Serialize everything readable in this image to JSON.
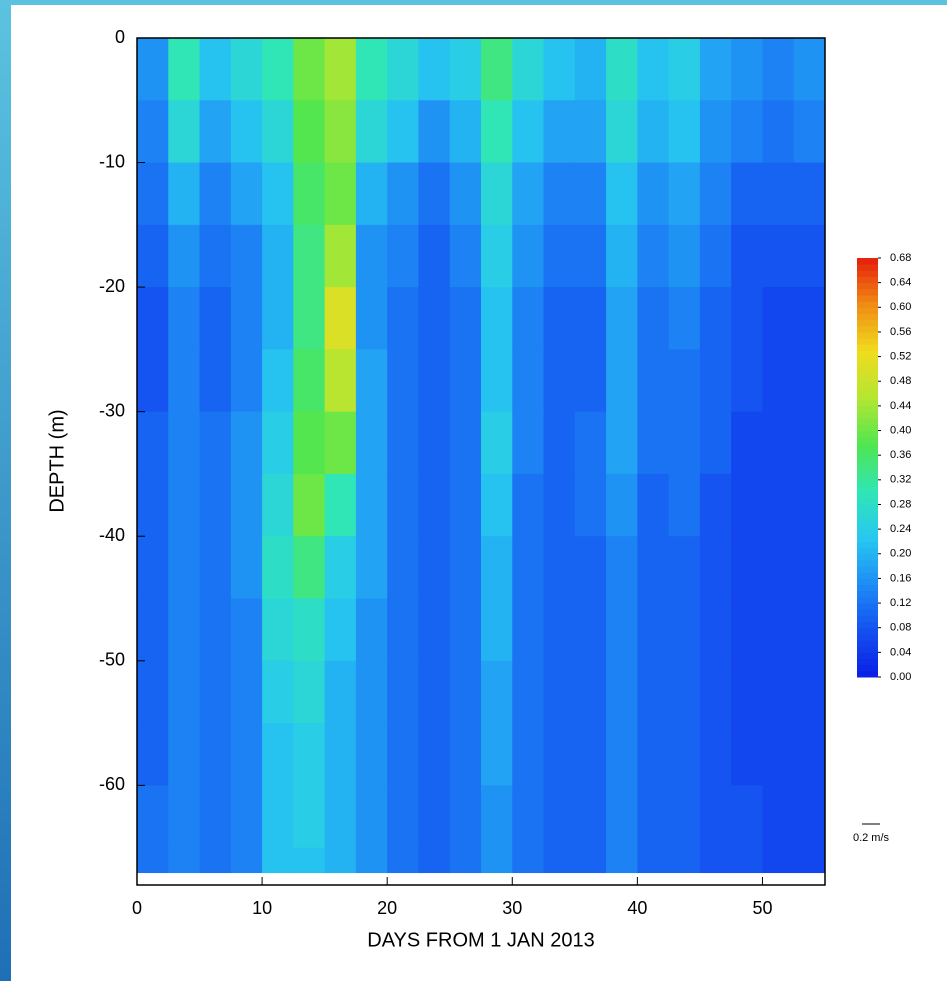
{
  "chart_data": {
    "type": "heatmap",
    "x_label": "DAYS FROM 1 JAN 2013",
    "y_label": "DEPTH (m)",
    "xlim": [
      0,
      55
    ],
    "ylim": [
      -68,
      0
    ],
    "xticks": [
      0,
      10,
      20,
      30,
      40,
      50
    ],
    "yticks": [
      0,
      -10,
      -20,
      -30,
      -40,
      -50,
      -60
    ],
    "x_edges": [
      0,
      2.5,
      5,
      7.5,
      10,
      12.5,
      15,
      17.5,
      20,
      22.5,
      25,
      27.5,
      30,
      32.5,
      35,
      37.5,
      40,
      42.5,
      45,
      47.5,
      50,
      52.5,
      55
    ],
    "y_edges": [
      0,
      -5,
      -10,
      -15,
      -20,
      -25,
      -30,
      -35,
      -40,
      -45,
      -50,
      -55,
      -60,
      -65,
      -67
    ],
    "values": [
      [
        0.16,
        0.3,
        0.22,
        0.26,
        0.3,
        0.4,
        0.44,
        0.3,
        0.26,
        0.22,
        0.24,
        0.34,
        0.26,
        0.22,
        0.2,
        0.28,
        0.22,
        0.24,
        0.18,
        0.16,
        0.14,
        0.16
      ],
      [
        0.14,
        0.26,
        0.18,
        0.22,
        0.26,
        0.38,
        0.42,
        0.26,
        0.22,
        0.16,
        0.2,
        0.3,
        0.22,
        0.18,
        0.18,
        0.26,
        0.2,
        0.22,
        0.16,
        0.14,
        0.12,
        0.14
      ],
      [
        0.12,
        0.2,
        0.14,
        0.18,
        0.22,
        0.36,
        0.4,
        0.2,
        0.16,
        0.12,
        0.16,
        0.26,
        0.18,
        0.14,
        0.14,
        0.22,
        0.16,
        0.18,
        0.14,
        0.1,
        0.1,
        0.1
      ],
      [
        0.1,
        0.16,
        0.12,
        0.14,
        0.2,
        0.34,
        0.44,
        0.16,
        0.14,
        0.1,
        0.14,
        0.24,
        0.16,
        0.12,
        0.12,
        0.2,
        0.14,
        0.16,
        0.12,
        0.08,
        0.08,
        0.08
      ],
      [
        0.08,
        0.14,
        0.1,
        0.14,
        0.2,
        0.34,
        0.5,
        0.16,
        0.12,
        0.1,
        0.12,
        0.22,
        0.14,
        0.1,
        0.1,
        0.18,
        0.12,
        0.14,
        0.1,
        0.08,
        0.06,
        0.06
      ],
      [
        0.08,
        0.14,
        0.1,
        0.14,
        0.22,
        0.36,
        0.46,
        0.18,
        0.12,
        0.1,
        0.12,
        0.22,
        0.14,
        0.1,
        0.1,
        0.18,
        0.12,
        0.12,
        0.1,
        0.08,
        0.06,
        0.06
      ],
      [
        0.1,
        0.14,
        0.12,
        0.16,
        0.24,
        0.38,
        0.4,
        0.18,
        0.12,
        0.1,
        0.12,
        0.24,
        0.14,
        0.1,
        0.12,
        0.18,
        0.12,
        0.12,
        0.1,
        0.06,
        0.06,
        0.06
      ],
      [
        0.1,
        0.14,
        0.12,
        0.16,
        0.26,
        0.4,
        0.3,
        0.18,
        0.12,
        0.1,
        0.12,
        0.22,
        0.12,
        0.1,
        0.12,
        0.16,
        0.1,
        0.12,
        0.08,
        0.06,
        0.06,
        0.06
      ],
      [
        0.1,
        0.14,
        0.12,
        0.16,
        0.28,
        0.34,
        0.24,
        0.18,
        0.12,
        0.1,
        0.12,
        0.2,
        0.12,
        0.1,
        0.1,
        0.14,
        0.1,
        0.1,
        0.08,
        0.06,
        0.06,
        0.06
      ],
      [
        0.1,
        0.14,
        0.12,
        0.14,
        0.26,
        0.28,
        0.22,
        0.16,
        0.12,
        0.1,
        0.12,
        0.2,
        0.12,
        0.1,
        0.1,
        0.14,
        0.1,
        0.1,
        0.08,
        0.06,
        0.06,
        0.06
      ],
      [
        0.1,
        0.14,
        0.12,
        0.14,
        0.24,
        0.26,
        0.2,
        0.16,
        0.12,
        0.1,
        0.12,
        0.18,
        0.12,
        0.1,
        0.1,
        0.14,
        0.1,
        0.1,
        0.08,
        0.06,
        0.06,
        0.06
      ],
      [
        0.1,
        0.14,
        0.12,
        0.14,
        0.22,
        0.24,
        0.2,
        0.16,
        0.12,
        0.1,
        0.12,
        0.18,
        0.12,
        0.1,
        0.1,
        0.14,
        0.1,
        0.1,
        0.08,
        0.06,
        0.06,
        0.06
      ],
      [
        0.12,
        0.14,
        0.12,
        0.14,
        0.22,
        0.24,
        0.2,
        0.16,
        0.12,
        0.1,
        0.12,
        0.16,
        0.12,
        0.1,
        0.1,
        0.14,
        0.1,
        0.1,
        0.08,
        0.08,
        0.06,
        0.06
      ],
      [
        0.12,
        0.14,
        0.12,
        0.14,
        0.22,
        0.22,
        0.2,
        0.16,
        0.12,
        0.1,
        0.12,
        0.16,
        0.12,
        0.1,
        0.1,
        0.14,
        0.1,
        0.1,
        0.08,
        0.08,
        0.06,
        0.06
      ]
    ],
    "colors": [
      "#0a1ee6",
      "#1450f0",
      "#1e8cf5",
      "#28c8f0",
      "#30e6b4",
      "#50e650",
      "#b4e632",
      "#f0dc1e",
      "#f08c14",
      "#e61e0a"
    ],
    "colorbar": {
      "clim": [
        0,
        0.68
      ],
      "ticks": [
        {
          "value": 0.68,
          "label": "0.68"
        },
        {
          "value": 0.64,
          "label": "0.64"
        },
        {
          "value": 0.6,
          "label": "0.60"
        },
        {
          "value": 0.56,
          "label": "0.56"
        },
        {
          "value": 0.52,
          "label": "0.52"
        },
        {
          "value": 0.48,
          "label": "0.48"
        },
        {
          "value": 0.44,
          "label": "0.44"
        },
        {
          "value": 0.4,
          "label": "0.40"
        },
        {
          "value": 0.36,
          "label": "0.36"
        },
        {
          "value": 0.32,
          "label": "0.32"
        },
        {
          "value": 0.28,
          "label": "0.28"
        },
        {
          "value": 0.24,
          "label": "0.24"
        },
        {
          "value": 0.2,
          "label": "0.20"
        },
        {
          "value": 0.16,
          "label": "0.16"
        },
        {
          "value": 0.12,
          "label": "0.12"
        },
        {
          "value": 0.08,
          "label": "0.08"
        },
        {
          "value": 0.04,
          "label": "0.04"
        },
        {
          "value": 0,
          "label": "0.00"
        }
      ]
    },
    "vector_scale_label": "0.2 m/s"
  }
}
